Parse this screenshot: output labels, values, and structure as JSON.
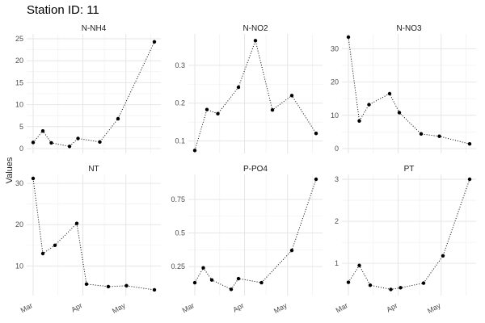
{
  "title": "Station ID: 11",
  "ylabel": "Values",
  "chart_data": {
    "type": "line",
    "line_style": "dotted",
    "marker": "filled-circle",
    "grid": true,
    "x_tick_labels": [
      "Mar",
      "Apr",
      "May"
    ],
    "panels": [
      {
        "name": "N-NH4",
        "ylim": [
          0,
          25
        ],
        "yticks": [
          0,
          5,
          10,
          15,
          20,
          25
        ],
        "x_norm": [
          0,
          0.08,
          0.15,
          0.3,
          0.37,
          0.55,
          0.7,
          1.0
        ],
        "values": [
          1.4,
          4.0,
          1.3,
          0.5,
          2.3,
          1.5,
          6.8,
          24.3
        ]
      },
      {
        "name": "N-NO2",
        "ylim": [
          0.08,
          0.37
        ],
        "yticks": [
          0.1,
          0.2,
          0.3
        ],
        "x_norm": [
          0,
          0.1,
          0.19,
          0.36,
          0.5,
          0.64,
          0.8,
          1.0
        ],
        "values": [
          0.075,
          0.183,
          0.172,
          0.242,
          0.365,
          0.182,
          0.22,
          0.12
        ]
      },
      {
        "name": "N-NO3",
        "ylim": [
          0,
          33
        ],
        "yticks": [
          0,
          10,
          20,
          30
        ],
        "x_norm": [
          0,
          0.09,
          0.17,
          0.34,
          0.42,
          0.6,
          0.75,
          1.0
        ],
        "values": [
          33.5,
          8.3,
          13.2,
          16.5,
          10.8,
          4.4,
          3.7,
          1.4
        ]
      },
      {
        "name": "NT",
        "ylim": [
          4,
          31
        ],
        "yticks": [
          10,
          20,
          30
        ],
        "x_norm": [
          0,
          0.08,
          0.18,
          0.36,
          0.44,
          0.62,
          0.77,
          1.0
        ],
        "values": [
          31.2,
          13.0,
          15.0,
          20.3,
          5.6,
          5.0,
          5.2,
          4.2
        ]
      },
      {
        "name": "P-PO4",
        "ylim": [
          0.07,
          0.9
        ],
        "yticks": [
          0.25,
          0.5,
          0.75
        ],
        "x_norm": [
          0,
          0.07,
          0.14,
          0.3,
          0.36,
          0.55,
          0.8,
          1.0
        ],
        "values": [
          0.13,
          0.24,
          0.15,
          0.08,
          0.16,
          0.13,
          0.37,
          0.9
        ]
      },
      {
        "name": "PT",
        "ylim": [
          0.35,
          3.0
        ],
        "yticks": [
          1,
          2,
          3
        ],
        "x_norm": [
          0,
          0.09,
          0.18,
          0.35,
          0.43,
          0.62,
          0.78,
          1.0
        ],
        "values": [
          0.55,
          0.95,
          0.48,
          0.38,
          0.42,
          0.53,
          1.18,
          3.0
        ]
      }
    ]
  }
}
